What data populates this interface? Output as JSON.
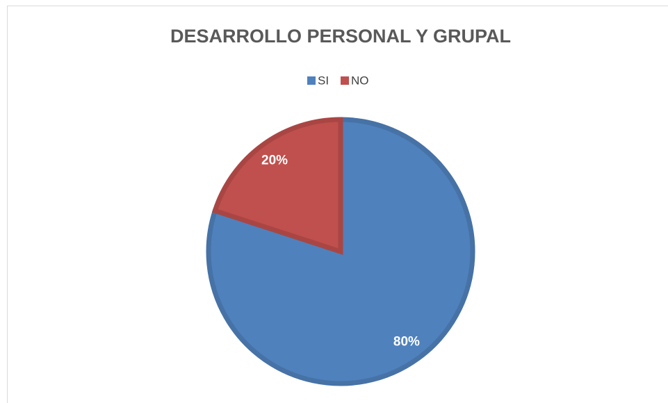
{
  "chart_data": {
    "type": "pie",
    "title": "DESARROLLO PERSONAL Y GRUPAL",
    "categories": [
      "SI",
      "NO"
    ],
    "values": [
      80,
      20
    ],
    "value_labels": [
      "80%",
      "20%"
    ],
    "colors": [
      "#4f81bd",
      "#c0504d"
    ],
    "legend": "top"
  }
}
